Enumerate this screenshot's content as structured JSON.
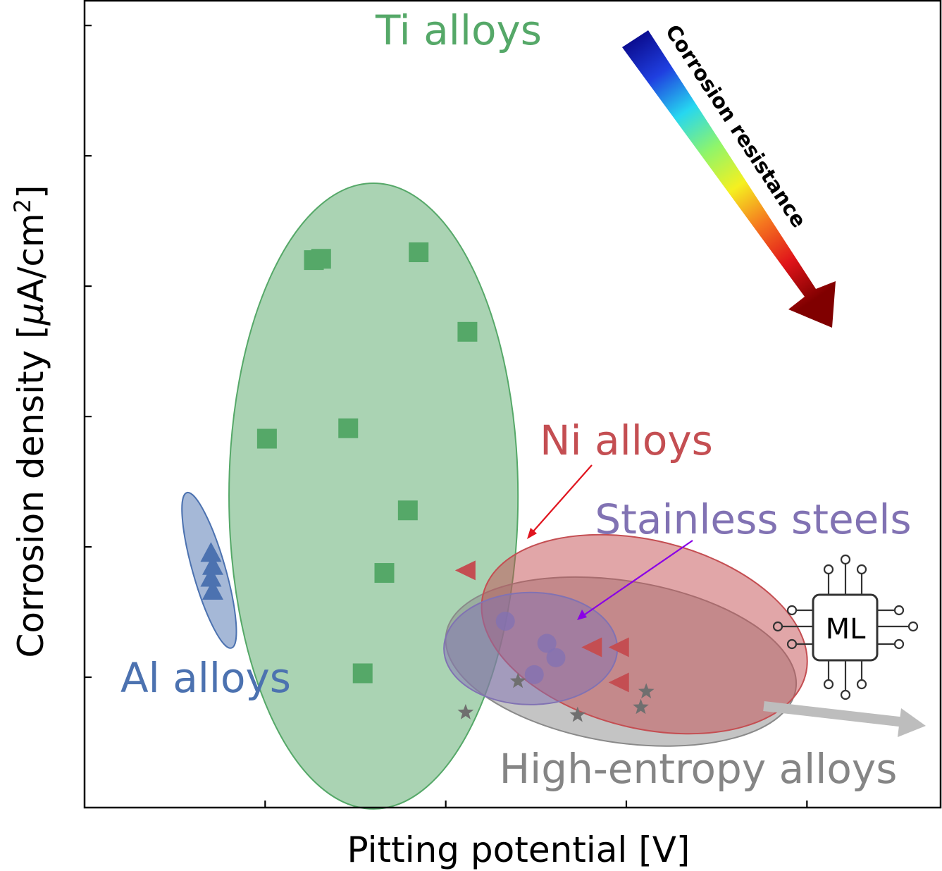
{
  "chart_data": {
    "type": "scatter",
    "xlabel": "Pitting potential [V]",
    "ylabel_main": "Corrosion density [",
    "ylabel_mu": "μ",
    "ylabel_unit": "A/cm",
    "ylabel_sup": "2",
    "ylabel_end": "]",
    "xlim": [
      0,
      4.74
    ],
    "ylim": [
      0,
      6.19
    ],
    "x_ticks": [
      1,
      2,
      3,
      4
    ],
    "y_ticks": [
      1,
      2,
      3,
      4,
      5,
      6
    ],
    "tick_labels_shown": false,
    "grid": false,
    "series": [
      {
        "name": "Ti alloys",
        "color": "#55a868",
        "marker": "square",
        "x": [
          1.27,
          1.31,
          1.85,
          2.12,
          1.01,
          1.46,
          1.79,
          1.66,
          1.54
        ],
        "y": [
          4.2,
          4.21,
          4.26,
          3.65,
          2.83,
          2.91,
          2.28,
          1.8,
          1.03
        ]
      },
      {
        "name": "Al alloys",
        "color": "#4c72b0",
        "marker": "triangle-up",
        "x": [
          0.7,
          0.71,
          0.7,
          0.71
        ],
        "y": [
          1.95,
          1.85,
          1.76,
          1.66
        ]
      },
      {
        "name": "Ni alloys",
        "color": "#c44e52",
        "marker": "triangle-left",
        "x": [
          2.11,
          2.81,
          2.96,
          2.96
        ],
        "y": [
          1.82,
          1.23,
          1.23,
          0.96
        ]
      },
      {
        "name": "Stainless steels",
        "color": "#8172b3",
        "marker": "circle",
        "x": [
          2.33,
          2.56,
          2.61,
          2.49
        ],
        "y": [
          1.43,
          1.26,
          1.15,
          1.02
        ]
      },
      {
        "name": "High-entropy alloys",
        "color": "#6f6f6f",
        "marker": "star",
        "x": [
          2.4,
          3.11,
          3.08,
          2.11,
          2.73
        ],
        "y": [
          0.97,
          0.89,
          0.77,
          0.73,
          0.71
        ]
      }
    ],
    "regions": [
      {
        "series": "Ti alloys",
        "color": "#55a868",
        "cx": 1.6,
        "cy": 2.39,
        "rx": 0.8,
        "ry": 2.4,
        "angle": 0
      },
      {
        "series": "Al alloys",
        "color": "#4c72b0",
        "cx": 0.69,
        "cy": 1.82,
        "rx": 0.09,
        "ry": 0.62,
        "angle": -16
      },
      {
        "series": "High-entropy alloys",
        "color": "#8a8a8a",
        "cx": 2.97,
        "cy": 1.12,
        "rx": 0.98,
        "ry": 0.62,
        "angle": 9
      },
      {
        "series": "Ni alloys",
        "color": "#c44e52",
        "cx": 3.1,
        "cy": 1.33,
        "rx": 0.92,
        "ry": 0.72,
        "angle": 14
      },
      {
        "series": "Stainless steels",
        "color": "#8172b3",
        "cx": 2.47,
        "cy": 1.22,
        "rx": 0.48,
        "ry": 0.43,
        "angle": 0
      }
    ],
    "region_labels": [
      {
        "series": "Ti alloys",
        "text": "Ti alloys",
        "color": "#55a868"
      },
      {
        "series": "Al alloys",
        "text": "Al alloys",
        "color": "#4c72b0"
      },
      {
        "series": "Ni alloys",
        "text": "Ni alloys",
        "color": "#c44e52"
      },
      {
        "series": "Stainless steels",
        "text": "Stainless steels",
        "color": "#8172b3"
      },
      {
        "series": "High-entropy alloys",
        "text": "High-entropy alloys",
        "color": "#858585"
      }
    ],
    "annotations": {
      "gradient_arrow_label": "Corrosion resistance",
      "gradient_colors": [
        "#0a0a8c",
        "#1f3fe0",
        "#26d7f0",
        "#8ff56a",
        "#f5f020",
        "#f5741f",
        "#e0141a",
        "#800000"
      ],
      "ml_chip_label": "ML",
      "ni_pointer_color": "#e0151f",
      "ss_pointer_color": "#8a00e6",
      "gray_arrow_color": "#bdbdbd"
    }
  }
}
